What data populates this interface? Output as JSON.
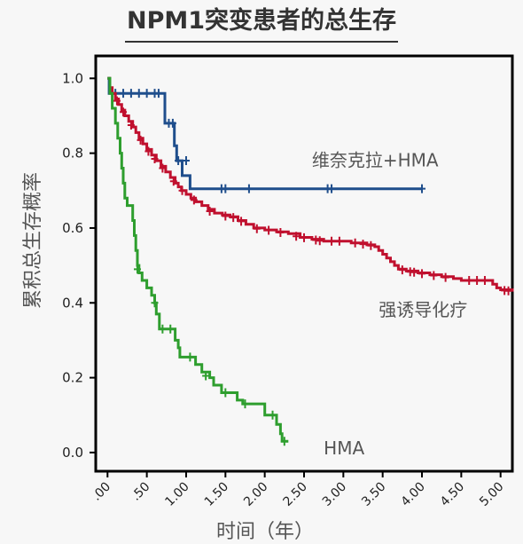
{
  "title": "NPM1突变患者的总生存",
  "chart_data": {
    "type": "line",
    "title": "NPM1突变患者的总生存",
    "xlabel": "时间（年）",
    "ylabel": "累积总生存概率",
    "xlim": [
      -0.15,
      5.15
    ],
    "ylim": [
      -0.05,
      1.06
    ],
    "x_ticks": [
      0,
      0.5,
      1,
      1.5,
      2,
      2.5,
      3,
      3.5,
      4,
      4.5,
      5
    ],
    "x_tick_labels": [
      ".00",
      ".50",
      "1.00",
      "1.50",
      "2.00",
      "2.50",
      "3.00",
      "3.50",
      "4.00",
      "4.50",
      "5.00"
    ],
    "y_ticks": [
      0,
      0.2,
      0.4,
      0.6,
      0.8,
      1.0
    ],
    "y_tick_labels": [
      "0.0",
      "0.2",
      "0.4",
      "0.6",
      "0.8",
      "1.0"
    ],
    "grid": false,
    "series": [
      {
        "name": "维奈克拉+HMA",
        "color": "#1f4e8c",
        "points": [
          [
            0,
            1.0
          ],
          [
            0.02,
            0.96
          ],
          [
            0.38,
            0.96
          ],
          [
            0.38,
            0.96
          ],
          [
            0.73,
            0.96
          ],
          [
            0.73,
            0.88
          ],
          [
            0.85,
            0.88
          ],
          [
            0.85,
            0.82
          ],
          [
            0.88,
            0.82
          ],
          [
            0.88,
            0.78
          ],
          [
            0.95,
            0.78
          ],
          [
            0.95,
            0.74
          ],
          [
            1.05,
            0.74
          ],
          [
            1.05,
            0.705
          ],
          [
            4.0,
            0.705
          ]
        ],
        "censors": [
          [
            0.1,
            0.96
          ],
          [
            0.2,
            0.96
          ],
          [
            0.3,
            0.96
          ],
          [
            0.4,
            0.96
          ],
          [
            0.5,
            0.96
          ],
          [
            0.6,
            0.96
          ],
          [
            0.65,
            0.96
          ],
          [
            0.78,
            0.88
          ],
          [
            0.83,
            0.88
          ],
          [
            0.9,
            0.78
          ],
          [
            1.0,
            0.78
          ],
          [
            1.45,
            0.705
          ],
          [
            1.5,
            0.705
          ],
          [
            1.8,
            0.705
          ],
          [
            2.8,
            0.705
          ],
          [
            2.85,
            0.705
          ],
          [
            4.0,
            0.705
          ]
        ]
      },
      {
        "name": "强诱导化疗",
        "color": "#c0102e",
        "points": [
          [
            0,
            1.0
          ],
          [
            0.03,
            0.975
          ],
          [
            0.06,
            0.96
          ],
          [
            0.1,
            0.945
          ],
          [
            0.14,
            0.93
          ],
          [
            0.18,
            0.915
          ],
          [
            0.22,
            0.9
          ],
          [
            0.27,
            0.885
          ],
          [
            0.32,
            0.87
          ],
          [
            0.36,
            0.855
          ],
          [
            0.4,
            0.84
          ],
          [
            0.45,
            0.825
          ],
          [
            0.5,
            0.81
          ],
          [
            0.56,
            0.795
          ],
          [
            0.62,
            0.78
          ],
          [
            0.68,
            0.765
          ],
          [
            0.74,
            0.75
          ],
          [
            0.8,
            0.735
          ],
          [
            0.86,
            0.72
          ],
          [
            0.9,
            0.71
          ],
          [
            0.94,
            0.7
          ],
          [
            1.0,
            0.69
          ],
          [
            1.06,
            0.68
          ],
          [
            1.12,
            0.67
          ],
          [
            1.2,
            0.66
          ],
          [
            1.28,
            0.65
          ],
          [
            1.36,
            0.64
          ],
          [
            1.46,
            0.635
          ],
          [
            1.56,
            0.63
          ],
          [
            1.66,
            0.62
          ],
          [
            1.76,
            0.61
          ],
          [
            1.86,
            0.6
          ],
          [
            2.0,
            0.595
          ],
          [
            2.15,
            0.59
          ],
          [
            2.3,
            0.585
          ],
          [
            2.45,
            0.575
          ],
          [
            2.6,
            0.57
          ],
          [
            2.75,
            0.565
          ],
          [
            3.0,
            0.565
          ],
          [
            3.1,
            0.56
          ],
          [
            3.3,
            0.555
          ],
          [
            3.4,
            0.55
          ],
          [
            3.45,
            0.54
          ],
          [
            3.5,
            0.53
          ],
          [
            3.55,
            0.52
          ],
          [
            3.6,
            0.51
          ],
          [
            3.65,
            0.5
          ],
          [
            3.7,
            0.49
          ],
          [
            3.8,
            0.485
          ],
          [
            3.95,
            0.48
          ],
          [
            4.1,
            0.475
          ],
          [
            4.25,
            0.47
          ],
          [
            4.4,
            0.465
          ],
          [
            4.5,
            0.46
          ],
          [
            4.85,
            0.46
          ],
          [
            4.9,
            0.45
          ],
          [
            4.95,
            0.44
          ],
          [
            5.0,
            0.435
          ],
          [
            5.15,
            0.43
          ]
        ],
        "censors": [
          [
            0.12,
            0.94
          ],
          [
            0.2,
            0.91
          ],
          [
            0.3,
            0.875
          ],
          [
            0.42,
            0.835
          ],
          [
            0.52,
            0.805
          ],
          [
            0.6,
            0.785
          ],
          [
            0.7,
            0.76
          ],
          [
            0.84,
            0.725
          ],
          [
            0.95,
            0.7
          ],
          [
            1.1,
            0.675
          ],
          [
            1.3,
            0.645
          ],
          [
            1.5,
            0.632
          ],
          [
            1.6,
            0.628
          ],
          [
            1.7,
            0.618
          ],
          [
            1.9,
            0.598
          ],
          [
            2.05,
            0.594
          ],
          [
            2.2,
            0.588
          ],
          [
            2.4,
            0.578
          ],
          [
            2.5,
            0.574
          ],
          [
            2.65,
            0.568
          ],
          [
            2.7,
            0.566
          ],
          [
            2.85,
            0.565
          ],
          [
            2.95,
            0.565
          ],
          [
            3.15,
            0.56
          ],
          [
            3.25,
            0.557
          ],
          [
            3.35,
            0.553
          ],
          [
            3.75,
            0.488
          ],
          [
            3.85,
            0.483
          ],
          [
            3.9,
            0.482
          ],
          [
            4.0,
            0.478
          ],
          [
            4.15,
            0.473
          ],
          [
            4.3,
            0.468
          ],
          [
            4.6,
            0.46
          ],
          [
            4.7,
            0.46
          ],
          [
            4.8,
            0.46
          ],
          [
            5.05,
            0.433
          ],
          [
            5.1,
            0.432
          ]
        ]
      },
      {
        "name": "HMA",
        "color": "#2e9e2e",
        "points": [
          [
            0,
            1.0
          ],
          [
            0.03,
            0.96
          ],
          [
            0.06,
            0.92
          ],
          [
            0.1,
            0.88
          ],
          [
            0.13,
            0.84
          ],
          [
            0.16,
            0.8
          ],
          [
            0.18,
            0.76
          ],
          [
            0.2,
            0.72
          ],
          [
            0.22,
            0.68
          ],
          [
            0.25,
            0.66
          ],
          [
            0.32,
            0.66
          ],
          [
            0.32,
            0.62
          ],
          [
            0.34,
            0.58
          ],
          [
            0.36,
            0.54
          ],
          [
            0.38,
            0.5
          ],
          [
            0.4,
            0.48
          ],
          [
            0.44,
            0.46
          ],
          [
            0.5,
            0.44
          ],
          [
            0.56,
            0.42
          ],
          [
            0.6,
            0.4
          ],
          [
            0.62,
            0.37
          ],
          [
            0.66,
            0.33
          ],
          [
            0.83,
            0.33
          ],
          [
            0.86,
            0.3
          ],
          [
            0.9,
            0.28
          ],
          [
            0.92,
            0.255
          ],
          [
            1.1,
            0.255
          ],
          [
            1.12,
            0.235
          ],
          [
            1.2,
            0.215
          ],
          [
            1.3,
            0.2
          ],
          [
            1.35,
            0.18
          ],
          [
            1.45,
            0.16
          ],
          [
            1.62,
            0.16
          ],
          [
            1.65,
            0.14
          ],
          [
            1.72,
            0.13
          ],
          [
            1.95,
            0.13
          ],
          [
            2.0,
            0.1
          ],
          [
            2.1,
            0.1
          ],
          [
            2.15,
            0.075
          ],
          [
            2.2,
            0.05
          ],
          [
            2.22,
            0.03
          ],
          [
            2.3,
            0.03
          ]
        ],
        "censors": [
          [
            0.38,
            0.49
          ],
          [
            0.6,
            0.4
          ],
          [
            0.7,
            0.33
          ],
          [
            0.8,
            0.33
          ],
          [
            1.05,
            0.255
          ],
          [
            1.25,
            0.205
          ],
          [
            1.5,
            0.16
          ],
          [
            1.75,
            0.13
          ],
          [
            2.1,
            0.1
          ],
          [
            2.25,
            0.03
          ]
        ]
      }
    ],
    "series_labels": [
      {
        "text": "维奈克拉+HMA",
        "at": [
          2.6,
          0.765
        ]
      },
      {
        "text": "强诱导化疗",
        "at": [
          3.45,
          0.365
        ]
      },
      {
        "text": "HMA",
        "at": [
          2.75,
          -0.005
        ]
      }
    ]
  }
}
